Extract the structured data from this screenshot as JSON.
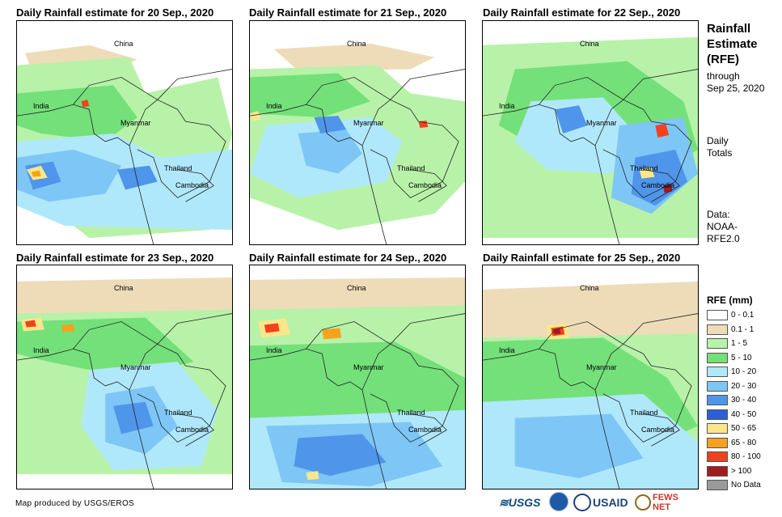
{
  "panels": [
    {
      "title": "Daily Rainfall estimate for 20 Sep., 2020",
      "labels": [
        "China",
        "India",
        "Myanmar",
        "Thailand",
        "Cambodia"
      ]
    },
    {
      "title": "Daily Rainfall estimate for 21 Sep., 2020",
      "labels": [
        "China",
        "India",
        "Myanmar",
        "Thailand",
        "Cambodia"
      ]
    },
    {
      "title": "Daily Rainfall estimate for 22 Sep., 2020",
      "labels": [
        "China",
        "India",
        "Myanmar",
        "Thailand",
        "Cambodia"
      ]
    },
    {
      "title": "Daily Rainfall estimate for 23 Sep., 2020",
      "labels": [
        "China",
        "India",
        "Myanmar",
        "Thailand",
        "Cambodia"
      ]
    },
    {
      "title": "Daily Rainfall estimate for 24 Sep., 2020",
      "labels": [
        "China",
        "India",
        "Myanmar",
        "Thailand",
        "Cambodia"
      ]
    },
    {
      "title": "Daily Rainfall estimate for 25 Sep., 2020",
      "labels": [
        "China",
        "India",
        "Myanmar",
        "Thailand",
        "Cambodia"
      ]
    }
  ],
  "sidebar": {
    "title_line1": "Rainfall",
    "title_line2": "Estimate",
    "title_line3": "(RFE)",
    "through": "through",
    "date": "Sep 25, 2020",
    "totals_line1": "Daily",
    "totals_line2": "Totals",
    "data_line1": "Data:",
    "data_line2": "NOAA-",
    "data_line3": "RFE2.0"
  },
  "legend": {
    "title": "RFE (mm)",
    "items": [
      {
        "label": "0 - 0.1",
        "color": "#ffffff"
      },
      {
        "label": "0.1 - 1",
        "color": "#eedcb9"
      },
      {
        "label": "1 - 5",
        "color": "#b7f2a8"
      },
      {
        "label": "5 - 10",
        "color": "#74e07a"
      },
      {
        "label": "10 - 20",
        "color": "#b0e8fb"
      },
      {
        "label": "20 - 30",
        "color": "#7ec6f5"
      },
      {
        "label": "30 - 40",
        "color": "#4f95ea"
      },
      {
        "label": "40 - 50",
        "color": "#2b5fd8"
      },
      {
        "label": "50 - 65",
        "color": "#fbe78a"
      },
      {
        "label": "65 - 80",
        "color": "#f6a21c"
      },
      {
        "label": "80 - 100",
        "color": "#f4411d"
      },
      {
        "label": "> 100",
        "color": "#a11d1d"
      },
      {
        "label": "No Data",
        "color": "#9a9a9a"
      }
    ]
  },
  "footer": {
    "credit": "Map produced by USGS/EROS",
    "logo_usgs": "≋USGS",
    "logo_usaid": "USAID",
    "logo_fews": "FEWS NET"
  }
}
